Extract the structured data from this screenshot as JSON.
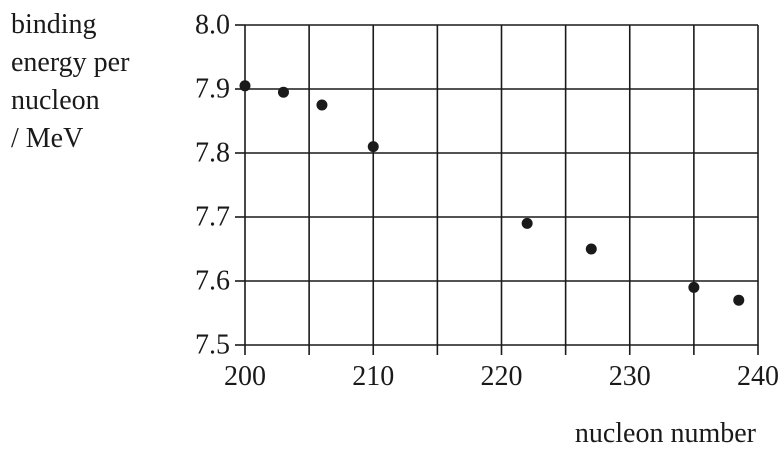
{
  "chart_data": {
    "type": "scatter",
    "title": "",
    "xlabel": "nucleon number",
    "ylabel_lines": [
      "binding",
      "energy per",
      "nucleon",
      "/ MeV"
    ],
    "xlim": [
      200,
      240
    ],
    "ylim": [
      7.5,
      8.0
    ],
    "xticks": [
      200,
      210,
      220,
      230,
      240
    ],
    "xtick_labels": [
      "200",
      "210",
      "220",
      "230",
      "240"
    ],
    "yticks": [
      7.5,
      7.6,
      7.7,
      7.8,
      7.9,
      8.0
    ],
    "ytick_labels": [
      "7.5",
      "7.6",
      "7.7",
      "7.8",
      "7.9",
      "8.0"
    ],
    "grid": true,
    "x": [
      200,
      203,
      206,
      210,
      222,
      227,
      235,
      238.5
    ],
    "y": [
      7.905,
      7.895,
      7.875,
      7.81,
      7.69,
      7.65,
      7.59,
      7.57
    ],
    "colors": {
      "ink": "#1a1a1a"
    }
  }
}
